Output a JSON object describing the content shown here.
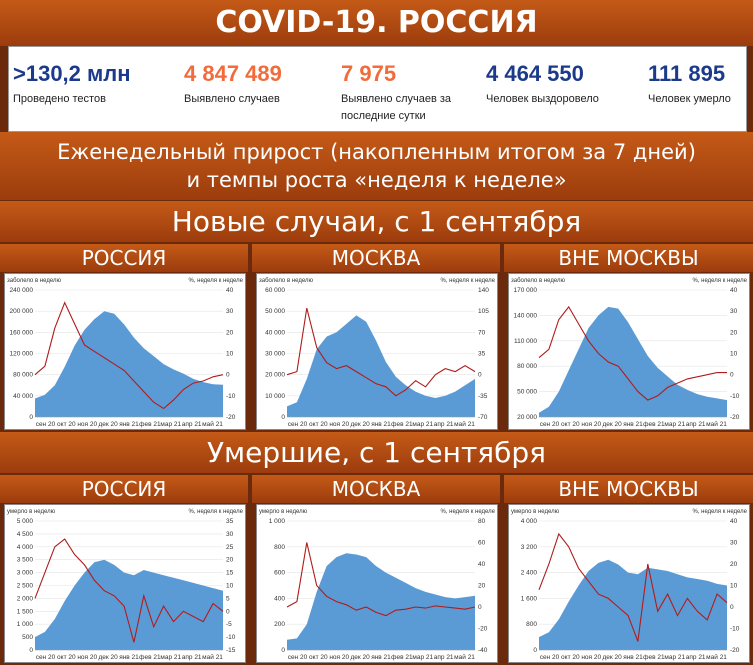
{
  "title": "COVID-19. РОССИЯ",
  "stats": [
    {
      "value": ">130,2 млн",
      "label": "Проведено тестов",
      "color": "#1b3a8c"
    },
    {
      "value": "4 847 489",
      "label": "Выявлено случаев",
      "color": "#f26b3a"
    },
    {
      "value": "7 975",
      "label": "Выявлено случаев за последние сутки",
      "color": "#f26b3a"
    },
    {
      "value": "4 464 550",
      "label": "Человек выздоровело",
      "color": "#1b3a8c"
    },
    {
      "value": "111 895",
      "label": "Человек умерло",
      "color": "#1b3a8c"
    }
  ],
  "weekly_header": {
    "line1": "Еженедельный прирост (накопленным итогом за 7 дней)",
    "line2": "и темпы роста «неделя к неделе»"
  },
  "sections": {
    "new_cases": "Новые случаи, с 1 сентября",
    "deaths": "Умершие, с 1 сентября"
  },
  "regions": [
    "РОССИЯ",
    "МОСКВА",
    "ВНЕ МОСКВЫ"
  ],
  "colors": {
    "area": "#5b9bd5",
    "line": "#b01c1c"
  },
  "chart_data": [
    {
      "type": "area",
      "section": "new_cases",
      "region": "РОССИЯ",
      "left_label": "заболело в неделю",
      "right_label": "%, неделя к неделе",
      "left_ticks": [
        "240 000",
        "200 000",
        "160 000",
        "120 000",
        "80 000",
        "40 000",
        "0"
      ],
      "left_lim": [
        0,
        240000
      ],
      "right_ticks": [
        "40",
        "30",
        "20",
        "10",
        "0",
        "-10",
        "-20"
      ],
      "right_lim": [
        -20,
        40
      ],
      "x_ticks": [
        "сен 20",
        "окт 20",
        "ноя 20",
        "дек 20",
        "янв 21",
        "фев 21",
        "мар 21",
        "апр 21",
        "май 21"
      ],
      "series": [
        {
          "axis": "left",
          "kind": "area",
          "values": [
            35000,
            42000,
            60000,
            95000,
            135000,
            165000,
            185000,
            200000,
            195000,
            175000,
            150000,
            130000,
            115000,
            100000,
            90000,
            82000,
            72000,
            66000,
            62000,
            61000
          ]
        },
        {
          "axis": "right",
          "kind": "line",
          "values": [
            0,
            4,
            22,
            34,
            24,
            14,
            11,
            8,
            5,
            2,
            -3,
            -8,
            -13,
            -16,
            -12,
            -7,
            -4,
            -3,
            -1,
            0
          ]
        }
      ]
    },
    {
      "type": "area",
      "section": "new_cases",
      "region": "МОСКВА",
      "left_label": "заболело в неделю",
      "right_label": "%, неделя к неделе",
      "left_ticks": [
        "60 000",
        "50 000",
        "40 000",
        "30 000",
        "20 000",
        "10 000",
        "0"
      ],
      "left_lim": [
        0,
        60000
      ],
      "right_ticks": [
        "140",
        "105",
        "70",
        "35",
        "0",
        "-35",
        "-70"
      ],
      "right_lim": [
        -70,
        140
      ],
      "x_ticks": [
        "сен 20",
        "окт 20",
        "ноя 20",
        "дек 20",
        "янв 21",
        "фев 21",
        "мар 21",
        "апр 21",
        "май 21"
      ],
      "series": [
        {
          "axis": "left",
          "kind": "area",
          "values": [
            5000,
            7000,
            18000,
            32000,
            38000,
            40000,
            44000,
            48000,
            45000,
            36000,
            26000,
            19000,
            15000,
            12000,
            10000,
            9000,
            10000,
            12000,
            15000,
            18000
          ]
        },
        {
          "axis": "right",
          "kind": "line",
          "values": [
            0,
            5,
            110,
            45,
            20,
            10,
            15,
            5,
            -5,
            -15,
            -20,
            -35,
            -25,
            -10,
            -20,
            0,
            10,
            5,
            15,
            5
          ]
        }
      ]
    },
    {
      "type": "area",
      "section": "new_cases",
      "region": "ВНЕ МОСКВЫ",
      "left_label": "заболело в неделю",
      "right_label": "%, неделя к неделе",
      "left_ticks": [
        "170 000",
        "140 000",
        "110 000",
        "80 000",
        "50 000",
        "20 000"
      ],
      "left_lim": [
        20000,
        170000
      ],
      "right_ticks": [
        "40",
        "30",
        "20",
        "10",
        "0",
        "-10",
        "-20"
      ],
      "right_lim": [
        -20,
        40
      ],
      "x_ticks": [
        "сен 20",
        "окт 20",
        "ноя 20",
        "дек 20",
        "янв 21",
        "фев 21",
        "мар 21",
        "апр 21",
        "май 21"
      ],
      "series": [
        {
          "axis": "left",
          "kind": "area",
          "values": [
            25000,
            32000,
            50000,
            75000,
            100000,
            125000,
            140000,
            150000,
            148000,
            132000,
            112000,
            92000,
            78000,
            68000,
            58000,
            52000,
            47000,
            44000,
            42000,
            40000
          ]
        },
        {
          "axis": "right",
          "kind": "line",
          "values": [
            8,
            12,
            26,
            32,
            24,
            16,
            10,
            6,
            4,
            -2,
            -8,
            -12,
            -10,
            -6,
            -4,
            -2,
            -1,
            0,
            1,
            1
          ]
        }
      ]
    },
    {
      "type": "area",
      "section": "deaths",
      "region": "РОССИЯ",
      "left_label": "умерло в неделю",
      "right_label": "%, неделя к неделе",
      "left_ticks": [
        "5 000",
        "4 500",
        "4 000",
        "3 500",
        "3 000",
        "2 500",
        "2 000",
        "1 500",
        "1 000",
        "500",
        "0"
      ],
      "left_lim": [
        0,
        5000
      ],
      "right_ticks": [
        "35",
        "30",
        "25",
        "20",
        "15",
        "10",
        "5",
        "0",
        "-5",
        "-10",
        "-15"
      ],
      "right_lim": [
        -15,
        35
      ],
      "x_ticks": [
        "сен 20",
        "окт 20",
        "ноя 20",
        "дек 20",
        "янв 21",
        "фев 21",
        "мар 21",
        "апр 21",
        "май 21"
      ],
      "series": [
        {
          "axis": "left",
          "kind": "area",
          "values": [
            500,
            700,
            1200,
            1900,
            2500,
            3000,
            3400,
            3500,
            3300,
            3000,
            2900,
            3100,
            3000,
            2900,
            2800,
            2700,
            2600,
            2500,
            2400,
            2300
          ]
        },
        {
          "axis": "right",
          "kind": "line",
          "values": [
            5,
            15,
            25,
            28,
            22,
            18,
            12,
            8,
            6,
            2,
            -12,
            6,
            -6,
            2,
            -4,
            0,
            -2,
            -4,
            3,
            0
          ]
        }
      ]
    },
    {
      "type": "area",
      "section": "deaths",
      "region": "МОСКВА",
      "left_label": "умерло в неделю",
      "right_label": "%, неделя к неделе",
      "left_ticks": [
        "1 000",
        "800",
        "600",
        "400",
        "200",
        "0"
      ],
      "left_lim": [
        0,
        1000
      ],
      "right_ticks": [
        "80",
        "60",
        "40",
        "20",
        "0",
        "-20",
        "-40"
      ],
      "right_lim": [
        -40,
        80
      ],
      "x_ticks": [
        "сен 20",
        "окт 20",
        "ноя 20",
        "дек 20",
        "янв 21",
        "фев 21",
        "мар 21",
        "апр 21",
        "май 21"
      ],
      "series": [
        {
          "axis": "left",
          "kind": "area",
          "values": [
            80,
            90,
            200,
            450,
            650,
            720,
            750,
            740,
            720,
            650,
            600,
            560,
            520,
            480,
            450,
            430,
            410,
            400,
            410,
            420
          ]
        },
        {
          "axis": "right",
          "kind": "line",
          "values": [
            0,
            5,
            60,
            20,
            10,
            5,
            2,
            -3,
            0,
            -5,
            -8,
            -3,
            -2,
            0,
            -1,
            1,
            0,
            -1,
            -2,
            0
          ]
        }
      ]
    },
    {
      "type": "area",
      "section": "deaths",
      "region": "ВНЕ МОСКВЫ",
      "left_label": "умерло в неделю",
      "right_label": "%, неделя к неделе",
      "left_ticks": [
        "4 000",
        "3 200",
        "2 400",
        "1 600",
        "800",
        "0"
      ],
      "left_lim": [
        0,
        4000
      ],
      "right_ticks": [
        "40",
        "30",
        "20",
        "10",
        "0",
        "-10",
        "-20"
      ],
      "right_lim": [
        -20,
        40
      ],
      "x_ticks": [
        "сен 20",
        "окт 20",
        "ноя 20",
        "дек 20",
        "янв 21",
        "фев 21",
        "мар 21",
        "апр 21",
        "май 21"
      ],
      "series": [
        {
          "axis": "left",
          "kind": "area",
          "values": [
            400,
            550,
            950,
            1500,
            2000,
            2450,
            2700,
            2800,
            2650,
            2400,
            2350,
            2550,
            2500,
            2450,
            2350,
            2250,
            2200,
            2150,
            2050,
            2000
          ]
        },
        {
          "axis": "right",
          "kind": "line",
          "values": [
            8,
            20,
            34,
            28,
            18,
            12,
            6,
            4,
            0,
            -4,
            -16,
            20,
            -2,
            6,
            -4,
            4,
            -2,
            -6,
            6,
            2
          ]
        }
      ]
    }
  ]
}
